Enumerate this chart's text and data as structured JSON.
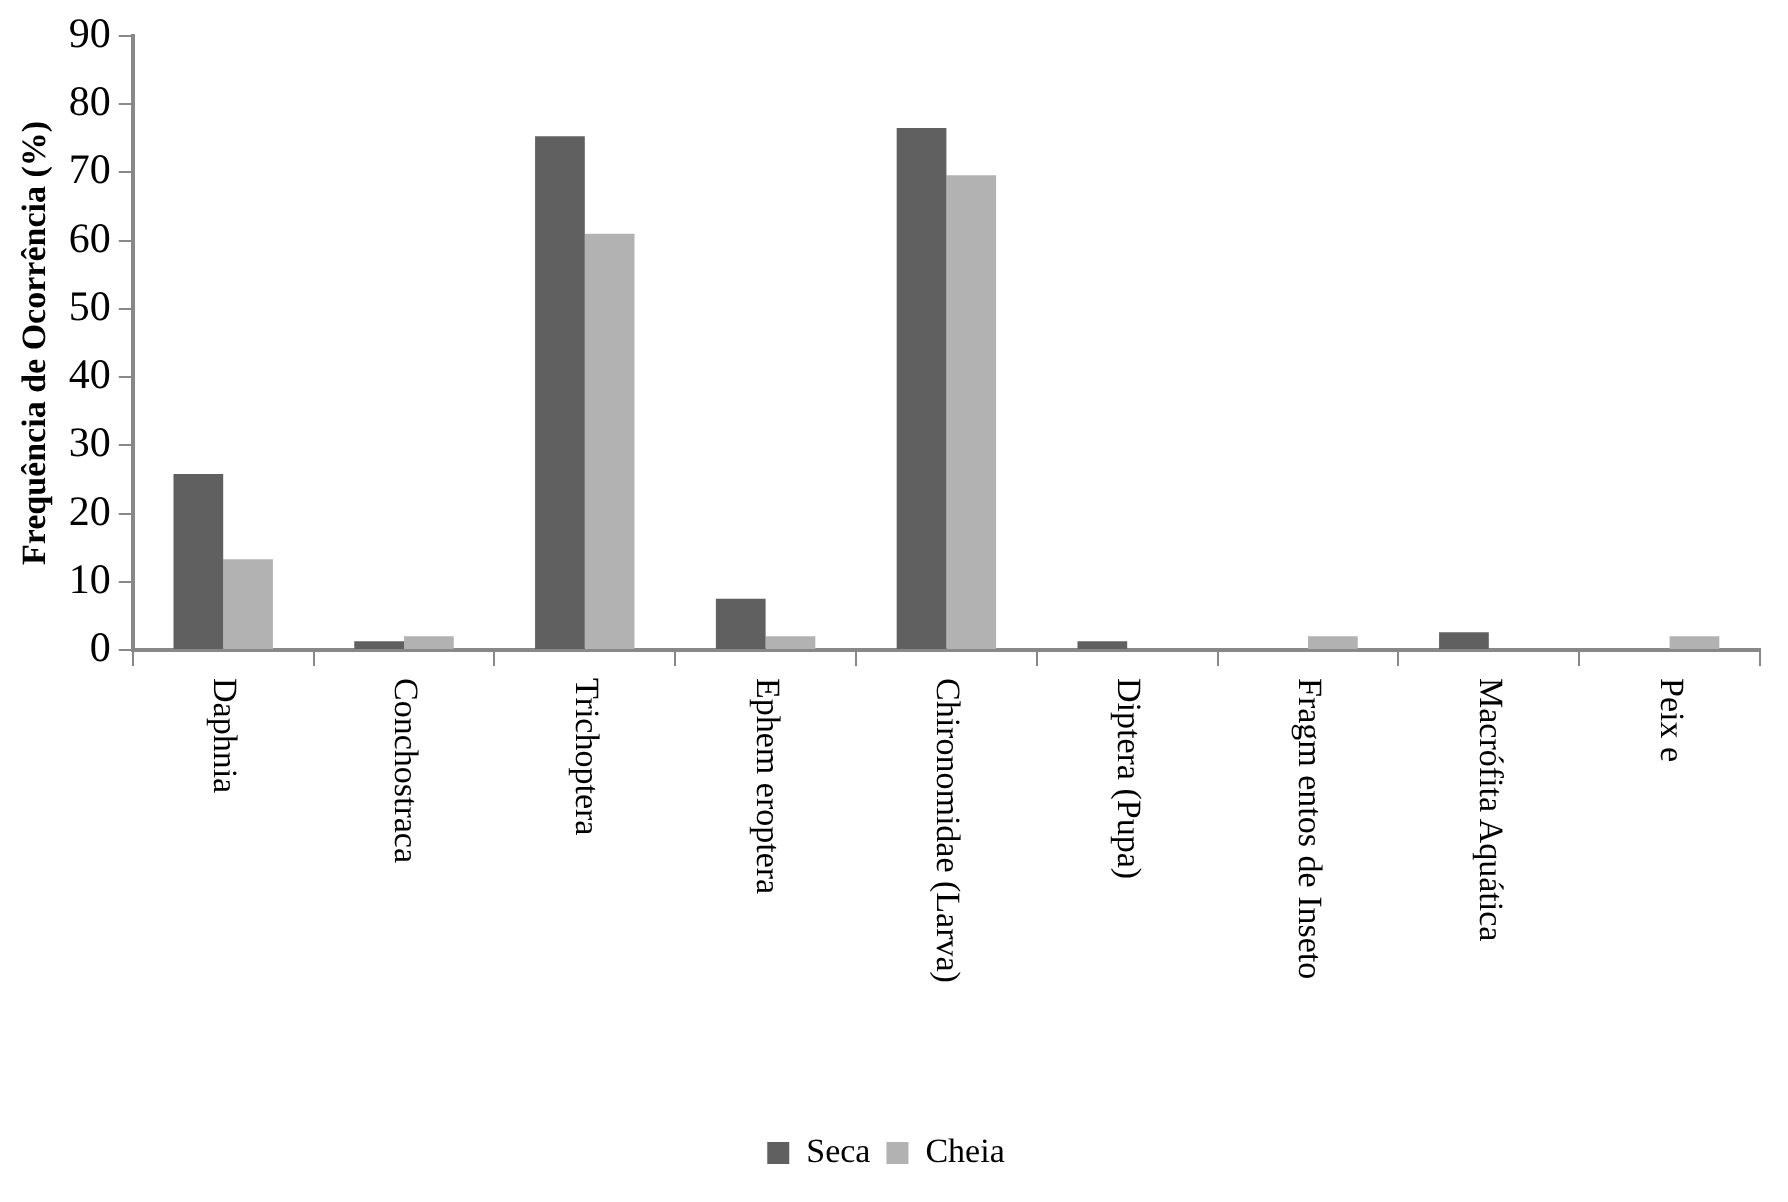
{
  "chart_data": {
    "type": "bar",
    "ylabel": "Frequência de Ocorrência (%)",
    "categories": [
      "Daphnia",
      "Conchostraca",
      "Trichoptera",
      "Ephem eroptera",
      "Chironomidae (Larva)",
      "Diptera (Pupa)",
      "Fragm entos de Inseto",
      "Macrófita Aquática",
      "Peix e"
    ],
    "series": [
      {
        "name": "Seca",
        "color": "#606060",
        "values": [
          25.8,
          1.3,
          75.3,
          7.5,
          76.5,
          1.3,
          0,
          2.6,
          0
        ]
      },
      {
        "name": "Cheia",
        "color": "#b2b2b2",
        "values": [
          13.3,
          2,
          61,
          2,
          69.6,
          0,
          2,
          0,
          2
        ]
      }
    ],
    "ylim": [
      0,
      90
    ],
    "yticks": [
      0,
      10,
      20,
      30,
      40,
      50,
      60,
      70,
      80,
      90
    ],
    "grid": false,
    "legend": "bottom"
  }
}
